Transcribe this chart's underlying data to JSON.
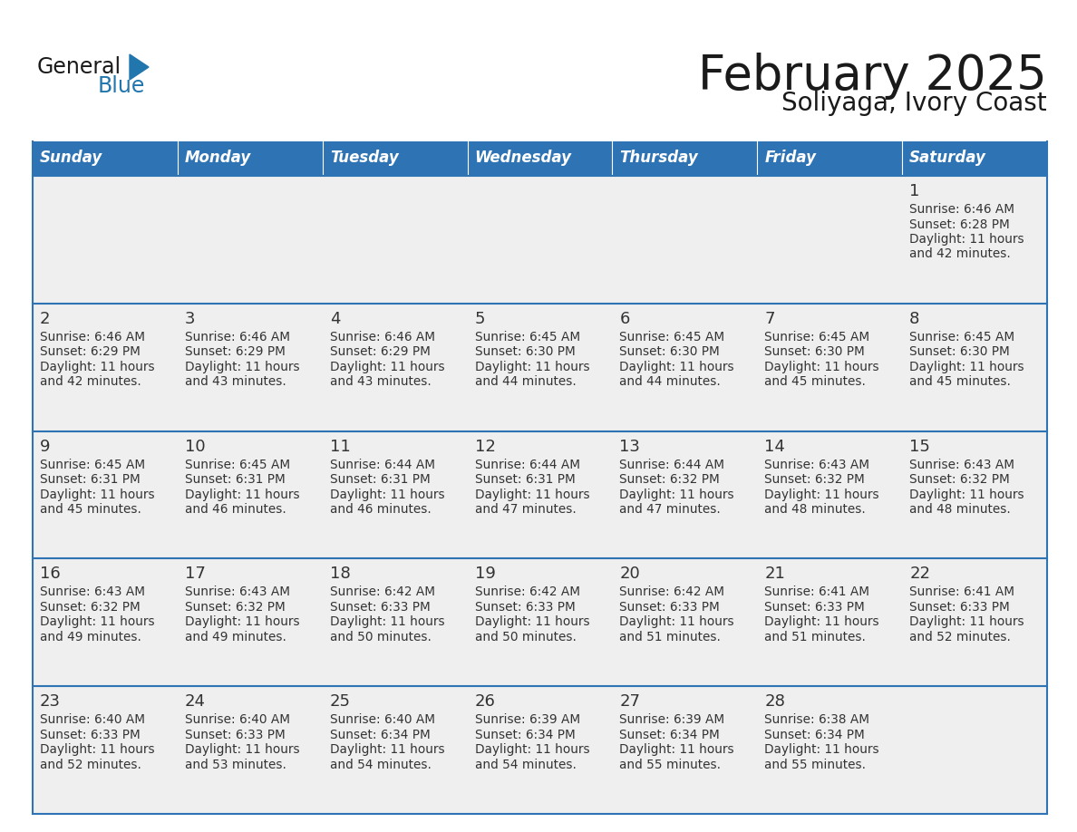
{
  "title": "February 2025",
  "subtitle": "Soliyaga, Ivory Coast",
  "header_bg": "#2E74B5",
  "header_text_color": "#FFFFFF",
  "header_font_size": 12,
  "day_names": [
    "Sunday",
    "Monday",
    "Tuesday",
    "Wednesday",
    "Thursday",
    "Friday",
    "Saturday"
  ],
  "title_font_size": 38,
  "subtitle_font_size": 20,
  "cell_text_color": "#333333",
  "cell_day_font_size": 13,
  "cell_info_font_size": 9.8,
  "logo_general_color": "#1a1a1a",
  "logo_blue_color": "#2176AE",
  "row_bg": "#EFEFEF",
  "separator_color": "#2E74B5",
  "calendar_data": [
    {
      "day": 1,
      "col": 6,
      "row": 0,
      "sunrise": "6:46 AM",
      "sunset": "6:28 PM",
      "daylight_h": "11 hours",
      "daylight_m": "42 minutes."
    },
    {
      "day": 2,
      "col": 0,
      "row": 1,
      "sunrise": "6:46 AM",
      "sunset": "6:29 PM",
      "daylight_h": "11 hours",
      "daylight_m": "42 minutes."
    },
    {
      "day": 3,
      "col": 1,
      "row": 1,
      "sunrise": "6:46 AM",
      "sunset": "6:29 PM",
      "daylight_h": "11 hours",
      "daylight_m": "43 minutes."
    },
    {
      "day": 4,
      "col": 2,
      "row": 1,
      "sunrise": "6:46 AM",
      "sunset": "6:29 PM",
      "daylight_h": "11 hours",
      "daylight_m": "43 minutes."
    },
    {
      "day": 5,
      "col": 3,
      "row": 1,
      "sunrise": "6:45 AM",
      "sunset": "6:30 PM",
      "daylight_h": "11 hours",
      "daylight_m": "44 minutes."
    },
    {
      "day": 6,
      "col": 4,
      "row": 1,
      "sunrise": "6:45 AM",
      "sunset": "6:30 PM",
      "daylight_h": "11 hours",
      "daylight_m": "44 minutes."
    },
    {
      "day": 7,
      "col": 5,
      "row": 1,
      "sunrise": "6:45 AM",
      "sunset": "6:30 PM",
      "daylight_h": "11 hours",
      "daylight_m": "45 minutes."
    },
    {
      "day": 8,
      "col": 6,
      "row": 1,
      "sunrise": "6:45 AM",
      "sunset": "6:30 PM",
      "daylight_h": "11 hours",
      "daylight_m": "45 minutes."
    },
    {
      "day": 9,
      "col": 0,
      "row": 2,
      "sunrise": "6:45 AM",
      "sunset": "6:31 PM",
      "daylight_h": "11 hours",
      "daylight_m": "45 minutes."
    },
    {
      "day": 10,
      "col": 1,
      "row": 2,
      "sunrise": "6:45 AM",
      "sunset": "6:31 PM",
      "daylight_h": "11 hours",
      "daylight_m": "46 minutes."
    },
    {
      "day": 11,
      "col": 2,
      "row": 2,
      "sunrise": "6:44 AM",
      "sunset": "6:31 PM",
      "daylight_h": "11 hours",
      "daylight_m": "46 minutes."
    },
    {
      "day": 12,
      "col": 3,
      "row": 2,
      "sunrise": "6:44 AM",
      "sunset": "6:31 PM",
      "daylight_h": "11 hours",
      "daylight_m": "47 minutes."
    },
    {
      "day": 13,
      "col": 4,
      "row": 2,
      "sunrise": "6:44 AM",
      "sunset": "6:32 PM",
      "daylight_h": "11 hours",
      "daylight_m": "47 minutes."
    },
    {
      "day": 14,
      "col": 5,
      "row": 2,
      "sunrise": "6:43 AM",
      "sunset": "6:32 PM",
      "daylight_h": "11 hours",
      "daylight_m": "48 minutes."
    },
    {
      "day": 15,
      "col": 6,
      "row": 2,
      "sunrise": "6:43 AM",
      "sunset": "6:32 PM",
      "daylight_h": "11 hours",
      "daylight_m": "48 minutes."
    },
    {
      "day": 16,
      "col": 0,
      "row": 3,
      "sunrise": "6:43 AM",
      "sunset": "6:32 PM",
      "daylight_h": "11 hours",
      "daylight_m": "49 minutes."
    },
    {
      "day": 17,
      "col": 1,
      "row": 3,
      "sunrise": "6:43 AM",
      "sunset": "6:32 PM",
      "daylight_h": "11 hours",
      "daylight_m": "49 minutes."
    },
    {
      "day": 18,
      "col": 2,
      "row": 3,
      "sunrise": "6:42 AM",
      "sunset": "6:33 PM",
      "daylight_h": "11 hours",
      "daylight_m": "50 minutes."
    },
    {
      "day": 19,
      "col": 3,
      "row": 3,
      "sunrise": "6:42 AM",
      "sunset": "6:33 PM",
      "daylight_h": "11 hours",
      "daylight_m": "50 minutes."
    },
    {
      "day": 20,
      "col": 4,
      "row": 3,
      "sunrise": "6:42 AM",
      "sunset": "6:33 PM",
      "daylight_h": "11 hours",
      "daylight_m": "51 minutes."
    },
    {
      "day": 21,
      "col": 5,
      "row": 3,
      "sunrise": "6:41 AM",
      "sunset": "6:33 PM",
      "daylight_h": "11 hours",
      "daylight_m": "51 minutes."
    },
    {
      "day": 22,
      "col": 6,
      "row": 3,
      "sunrise": "6:41 AM",
      "sunset": "6:33 PM",
      "daylight_h": "11 hours",
      "daylight_m": "52 minutes."
    },
    {
      "day": 23,
      "col": 0,
      "row": 4,
      "sunrise": "6:40 AM",
      "sunset": "6:33 PM",
      "daylight_h": "11 hours",
      "daylight_m": "52 minutes."
    },
    {
      "day": 24,
      "col": 1,
      "row": 4,
      "sunrise": "6:40 AM",
      "sunset": "6:33 PM",
      "daylight_h": "11 hours",
      "daylight_m": "53 minutes."
    },
    {
      "day": 25,
      "col": 2,
      "row": 4,
      "sunrise": "6:40 AM",
      "sunset": "6:34 PM",
      "daylight_h": "11 hours",
      "daylight_m": "54 minutes."
    },
    {
      "day": 26,
      "col": 3,
      "row": 4,
      "sunrise": "6:39 AM",
      "sunset": "6:34 PM",
      "daylight_h": "11 hours",
      "daylight_m": "54 minutes."
    },
    {
      "day": 27,
      "col": 4,
      "row": 4,
      "sunrise": "6:39 AM",
      "sunset": "6:34 PM",
      "daylight_h": "11 hours",
      "daylight_m": "55 minutes."
    },
    {
      "day": 28,
      "col": 5,
      "row": 4,
      "sunrise": "6:38 AM",
      "sunset": "6:34 PM",
      "daylight_h": "11 hours",
      "daylight_m": "55 minutes."
    }
  ]
}
